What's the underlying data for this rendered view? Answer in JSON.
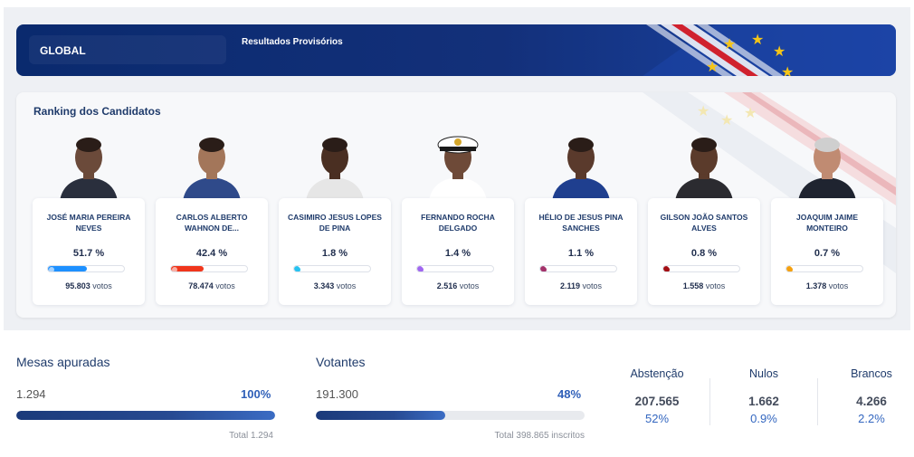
{
  "banner": {
    "tab_label": "GLOBAL",
    "subtitle": "Resultados Provisórios"
  },
  "ranking": {
    "title": "Ranking dos Candidatos",
    "votes_suffix": "votos",
    "candidates": [
      {
        "name": "JOSÉ MARIA PEREIRA NEVES",
        "pct": "51.7 %",
        "share": 0.517,
        "votes": "95.803",
        "color": "#1e90ff"
      },
      {
        "name": "CARLOS ALBERTO WAHNON DE...",
        "pct": "42.4 %",
        "share": 0.424,
        "votes": "78.474",
        "color": "#f0361c"
      },
      {
        "name": "CASIMIRO JESUS LOPES DE PINA",
        "pct": "1.8 %",
        "share": 0.018,
        "votes": "3.343",
        "color": "#27c2f0"
      },
      {
        "name": "FERNANDO ROCHA DELGADO",
        "pct": "1.4 %",
        "share": 0.014,
        "votes": "2.516",
        "color": "#a066f0"
      },
      {
        "name": "HÉLIO DE JESUS PINA SANCHES",
        "pct": "1.1 %",
        "share": 0.011,
        "votes": "2.119",
        "color": "#a3326a"
      },
      {
        "name": "GILSON JOÃO SANTOS ALVES",
        "pct": "0.8 %",
        "share": 0.008,
        "votes": "1.558",
        "color": "#a30f14"
      },
      {
        "name": "JOAQUIM JAIME MONTEIRO",
        "pct": "0.7 %",
        "share": 0.007,
        "votes": "1.378",
        "color": "#f5a00f"
      }
    ]
  },
  "mesas": {
    "label": "Mesas apuradas",
    "value": "1.294",
    "pct": "100%",
    "progress": 1.0,
    "total": "Total 1.294"
  },
  "votantes": {
    "label": "Votantes",
    "value": "191.300",
    "pct": "48%",
    "progress": 0.48,
    "total": "Total 398.865 inscritos"
  },
  "abstencao": {
    "label": "Abstenção",
    "value": "207.565",
    "pct": "52%"
  },
  "nulos": {
    "label": "Nulos",
    "value": "1.662",
    "pct": "0.9%"
  },
  "brancos": {
    "label": "Brancos",
    "value": "4.266",
    "pct": "2.2%"
  }
}
